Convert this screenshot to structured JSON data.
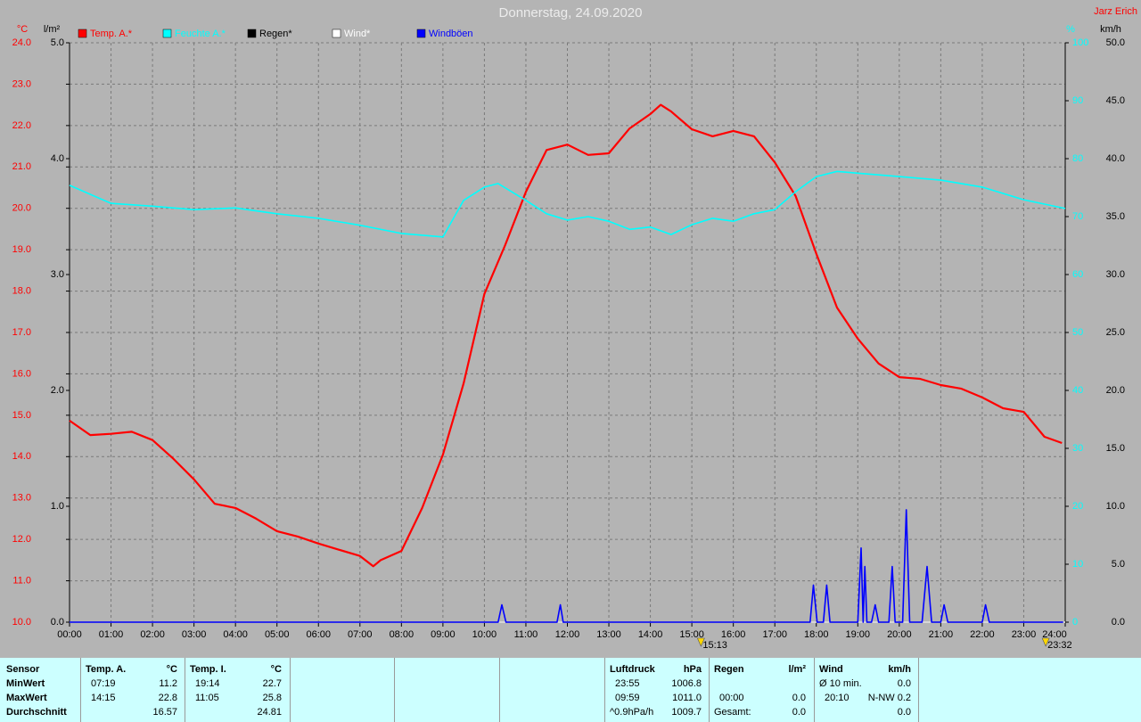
{
  "chart_data": {
    "type": "line",
    "title": "Donnerstag, 24.09.2020",
    "author": "Jarz Erich",
    "y_unit": "°C",
    "y2_unit": "%",
    "y3_unit": "l/m²",
    "y4_unit": "km/h",
    "xlim": [
      0,
      24
    ],
    "xticks": [
      {
        "value": 0,
        "label": "00:00"
      },
      {
        "value": 1,
        "label": "01:00"
      },
      {
        "value": 2,
        "label": "02:00"
      },
      {
        "value": 3,
        "label": "03:00"
      },
      {
        "value": 4,
        "label": "04:00"
      },
      {
        "value": 5,
        "label": "05:00"
      },
      {
        "value": 6,
        "label": "06:00"
      },
      {
        "value": 7,
        "label": "07:00"
      },
      {
        "value": 8,
        "label": "08:00"
      },
      {
        "value": 9,
        "label": "09:00"
      },
      {
        "value": 10,
        "label": "10:00"
      },
      {
        "value": 11,
        "label": "11:00"
      },
      {
        "value": 12,
        "label": "12:00"
      },
      {
        "value": 13,
        "label": "13:00"
      },
      {
        "value": 14,
        "label": "14:00"
      },
      {
        "value": 15,
        "label": "15:00"
      },
      {
        "value": 16,
        "label": "16:00"
      },
      {
        "value": 17,
        "label": "17:00"
      },
      {
        "value": 18,
        "label": "18:00"
      },
      {
        "value": 19,
        "label": "19:00"
      },
      {
        "value": 20,
        "label": "20:00"
      },
      {
        "value": 21,
        "label": "21:00"
      },
      {
        "value": 22,
        "label": "22:00"
      },
      {
        "value": 23,
        "label": "23:00"
      },
      {
        "value": 24,
        "label": "24:00"
      }
    ],
    "ylim": [
      10,
      24
    ],
    "yticks": [
      {
        "value": 10,
        "label": "10.0"
      },
      {
        "value": 11,
        "label": "11.0"
      },
      {
        "value": 12,
        "label": "12.0"
      },
      {
        "value": 13,
        "label": "13.0"
      },
      {
        "value": 14,
        "label": "14.0"
      },
      {
        "value": 15,
        "label": "15.0"
      },
      {
        "value": 16,
        "label": "16.0"
      },
      {
        "value": 17,
        "label": "17.0"
      },
      {
        "value": 18,
        "label": "18.0"
      },
      {
        "value": 19,
        "label": "19.0"
      },
      {
        "value": 20,
        "label": "20.0"
      },
      {
        "value": 21,
        "label": "21.0"
      },
      {
        "value": 22,
        "label": "22.0"
      },
      {
        "value": 23,
        "label": "23.0"
      },
      {
        "value": 24,
        "label": "24.0"
      }
    ],
    "y2lim": [
      0,
      100
    ],
    "y2ticks": [
      0,
      10,
      20,
      30,
      40,
      50,
      60,
      70,
      80,
      90,
      100
    ],
    "y3lim": [
      0,
      5
    ],
    "y3ticks": [
      {
        "value": 0,
        "label": "0.0"
      },
      {
        "value": 1,
        "label": "1.0"
      },
      {
        "value": 2,
        "label": "2.0"
      },
      {
        "value": 3,
        "label": "3.0"
      },
      {
        "value": 4,
        "label": "4.0"
      },
      {
        "value": 5,
        "label": "5.0"
      }
    ],
    "y4lim": [
      0,
      50
    ],
    "y4ticks": [
      {
        "value": 0,
        "label": "0.0"
      },
      {
        "value": 5,
        "label": "5.0"
      },
      {
        "value": 10,
        "label": "10.0"
      },
      {
        "value": 15,
        "label": "15.0"
      },
      {
        "value": 20,
        "label": "20.0"
      },
      {
        "value": 25,
        "label": "25.0"
      },
      {
        "value": 30,
        "label": "30.0"
      },
      {
        "value": 35,
        "label": "35.0"
      },
      {
        "value": 40,
        "label": "40.0"
      },
      {
        "value": 45,
        "label": "45.0"
      },
      {
        "value": 50,
        "label": "50.0"
      }
    ],
    "y_color": "#ff0000",
    "y2_color": "#00ffff",
    "y3_color": "#000000",
    "y4_color": "#000000",
    "grid": true,
    "series": [
      {
        "name": "Temp. A.*",
        "color": "#ff0000",
        "x": [
          0,
          0.5,
          1,
          1.5,
          2,
          2.5,
          3,
          3.5,
          4,
          4.5,
          5,
          5.5,
          6,
          6.5,
          7,
          7.32,
          7.5,
          8,
          8.5,
          9,
          9.5,
          10,
          10.5,
          11,
          11.5,
          12,
          12.5,
          13,
          13.5,
          14,
          14.25,
          14.5,
          15,
          15.5,
          16,
          16.5,
          17,
          17.5,
          18,
          18.5,
          19,
          19.5,
          20,
          20.5,
          21,
          21.5,
          22,
          22.5,
          23,
          23.5,
          23.92
        ],
        "values": [
          14.87,
          14.52,
          14.55,
          14.6,
          14.4,
          13.95,
          13.45,
          12.86,
          12.76,
          12.5,
          12.2,
          12.07,
          11.9,
          11.75,
          11.6,
          11.35,
          11.5,
          11.72,
          12.76,
          14.05,
          15.77,
          17.93,
          19.11,
          20.4,
          21.41,
          21.54,
          21.29,
          21.33,
          21.93,
          22.28,
          22.5,
          22.34,
          21.91,
          21.74,
          21.87,
          21.74,
          21.11,
          20.3,
          18.9,
          17.6,
          16.85,
          16.25,
          15.92,
          15.88,
          15.73,
          15.64,
          15.43,
          15.17,
          15.08,
          14.48,
          14.33
        ]
      },
      {
        "name": "Feuchte A.*",
        "color": "#00ffff",
        "axis": "y2",
        "x": [
          0,
          1,
          2,
          3,
          4,
          5,
          6,
          7,
          8,
          9,
          9.5,
          10,
          10.33,
          11,
          11.5,
          12,
          12.5,
          13,
          13.5,
          14,
          14.5,
          15,
          15.5,
          16,
          16.5,
          17,
          17.5,
          18,
          18.5,
          19,
          20,
          21,
          22,
          23,
          24
        ],
        "values": [
          75.4,
          72.3,
          71.8,
          71.2,
          71.5,
          70.5,
          69.7,
          68.5,
          67.1,
          66.5,
          72.8,
          75.1,
          75.7,
          72.8,
          70.5,
          69.4,
          70,
          69.2,
          67.8,
          68.2,
          66.9,
          68.6,
          69.7,
          69.2,
          70.5,
          71.2,
          74.3,
          76.9,
          77.8,
          77.5,
          76.9,
          76.3,
          75.1,
          72.9,
          71.4
        ]
      },
      {
        "name": "Regen*",
        "color": "#000000",
        "axis": "y3",
        "x": [
          0,
          24
        ],
        "values": [
          0,
          0
        ]
      },
      {
        "name": "Wind*",
        "color": "#ffffff",
        "axis": "y4",
        "x": [
          0,
          24
        ],
        "values": [
          0,
          0
        ]
      },
      {
        "name": "Windböen",
        "color": "#0000ff",
        "axis": "y4",
        "x": [
          0,
          10.33,
          10.42,
          10.52,
          11.75,
          11.83,
          11.9,
          17.85,
          17.93,
          18.02,
          18.17,
          18.25,
          18.33,
          19,
          19.08,
          19.13,
          19.17,
          19.22,
          19.33,
          19.42,
          19.5,
          19.75,
          19.83,
          19.9,
          20.08,
          20.17,
          20.25,
          20.55,
          20.67,
          20.78,
          21,
          21.08,
          21.17,
          22,
          22.08,
          22.17,
          23.95
        ],
        "values": [
          0,
          0,
          1.5,
          0,
          0,
          1.5,
          0,
          0,
          3.2,
          0,
          0,
          3.2,
          0,
          0,
          6.4,
          0,
          4.8,
          0,
          0,
          1.5,
          0,
          0,
          4.8,
          0,
          0,
          9.7,
          0,
          0,
          4.8,
          0,
          0,
          1.5,
          0,
          0,
          1.5,
          0,
          0
        ]
      }
    ],
    "annotations": [
      {
        "x": 15.22,
        "label": "15:13"
      },
      {
        "x": 23.53,
        "label": "23:32"
      }
    ]
  },
  "stats": {
    "row_labels": [
      "Sensor",
      "MinWert",
      "MaxWert",
      "Durchschnitt"
    ],
    "columns": [
      {
        "header": [
          "Temp. A.",
          "°C"
        ],
        "rows": [
          {
            "time": "07:19",
            "value": "11.2"
          },
          {
            "time": "14:15",
            "value": "22.8"
          },
          {
            "value": "16.57"
          }
        ]
      },
      {
        "header": [
          "Temp. I.",
          "°C"
        ],
        "rows": [
          {
            "time": "19:14",
            "value": "22.7"
          },
          {
            "time": "11:05",
            "value": "25.8"
          },
          {
            "value": "24.81"
          }
        ]
      },
      {
        "header": [
          "Luftdruck",
          "hPa"
        ],
        "rows": [
          {
            "time": "23:55",
            "value": "1006.8"
          },
          {
            "time": "09:59",
            "value": "1011.0"
          },
          {
            "time": "^0.9hPa/h",
            "value": "1009.7"
          }
        ]
      },
      {
        "header": [
          "Regen",
          "l/m²"
        ],
        "rows": [
          null,
          {
            "time": "00:00",
            "value": "0.0"
          },
          {
            "time": "Gesamt:",
            "value": "0.0"
          }
        ]
      },
      {
        "header": [
          "Wind",
          "km/h"
        ],
        "rows": [
          {
            "time": "Ø 10 min.",
            "value": "0.0"
          },
          {
            "time": "20:10",
            "value": "N-NW 0.2"
          },
          {
            "value": "0.0"
          }
        ]
      }
    ]
  }
}
